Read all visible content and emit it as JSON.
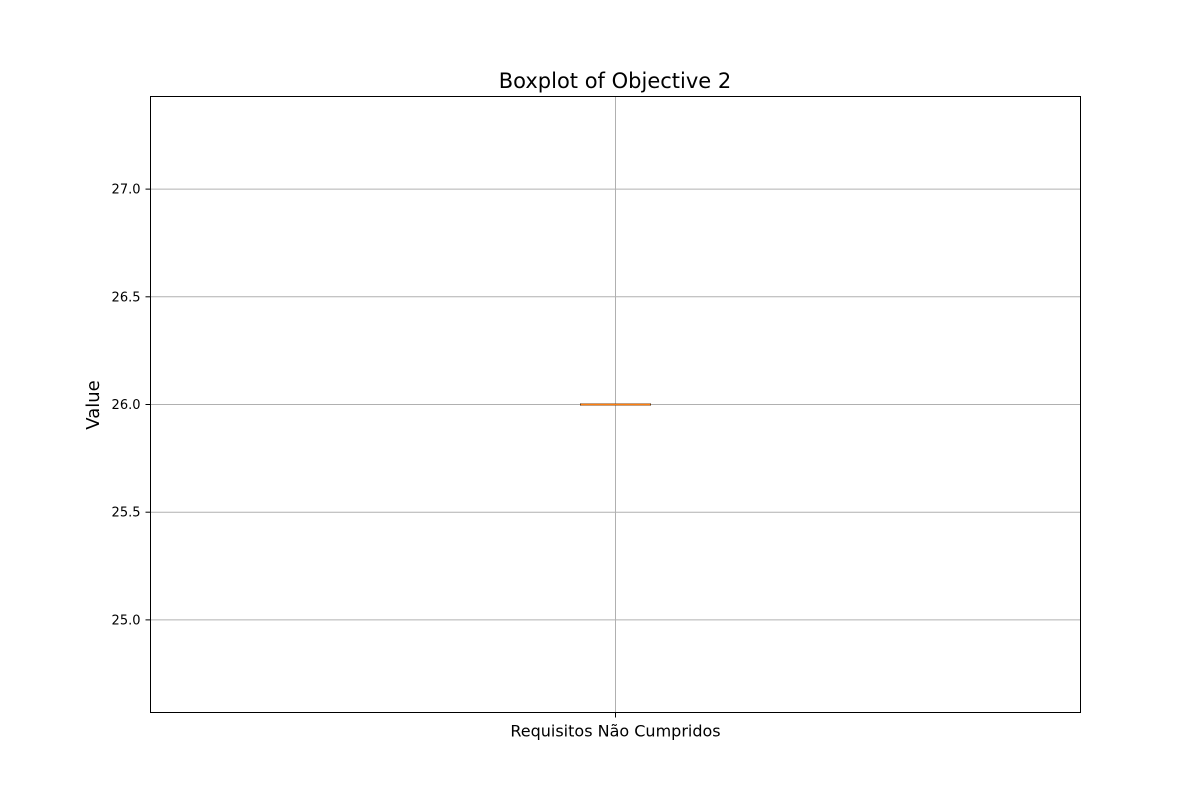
{
  "chart_data": {
    "type": "box",
    "title": "Boxplot of Objective 2",
    "xlabel": "",
    "ylabel": "Value",
    "categories": [
      "Requisitos Não Cumpridos"
    ],
    "series": [
      {
        "min": 26.0,
        "q1": 26.0,
        "median": 26.0,
        "q3": 26.0,
        "max": 26.0
      }
    ],
    "ylim": [
      24.57,
      27.43
    ],
    "yticks": [
      25.0,
      25.5,
      26.0,
      26.5,
      27.0
    ],
    "ytick_labels": [
      "25.0",
      "25.5",
      "26.0",
      "26.5",
      "27.0"
    ],
    "grid": true,
    "colors": {
      "box": "#000000",
      "median": "#ff7f0e",
      "grid": "#b0b0b0",
      "axes": "#000000"
    }
  }
}
